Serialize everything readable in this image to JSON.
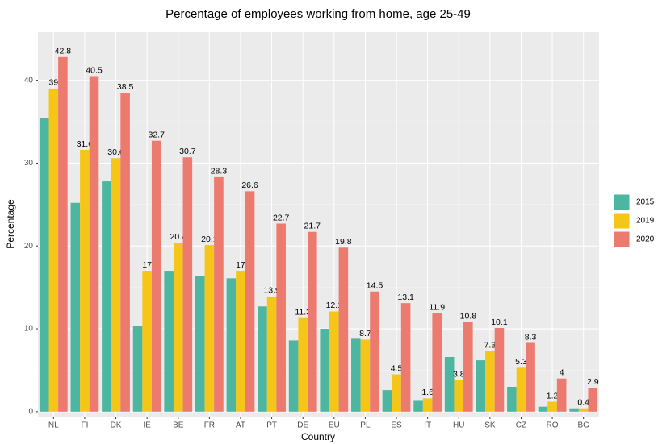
{
  "chart_data": {
    "type": "bar",
    "title": "Percentage of employees working from home, age 25-49",
    "x_label": "Country",
    "y_label": "Percentage",
    "categories": [
      "NL",
      "FI",
      "DK",
      "IE",
      "BE",
      "FR",
      "AT",
      "PT",
      "DE",
      "EU",
      "PL",
      "ES",
      "IT",
      "HU",
      "SK",
      "CZ",
      "RO",
      "BG"
    ],
    "series": [
      {
        "name": "2015",
        "color": "#4DB6A0",
        "show_labels": false,
        "values": [
          35.4,
          25.2,
          27.8,
          10.3,
          17.0,
          16.4,
          16.1,
          12.7,
          8.6,
          10.0,
          8.8,
          2.6,
          1.3,
          6.6,
          6.2,
          3.0,
          0.6,
          0.4
        ]
      },
      {
        "name": "2019",
        "color": "#F5C518",
        "show_labels": true,
        "values": [
          39,
          31.6,
          30.6,
          17,
          20.4,
          20.1,
          17,
          13.9,
          11.3,
          12.1,
          8.7,
          4.5,
          1.6,
          3.8,
          7.3,
          5.3,
          1.2,
          0.4
        ]
      },
      {
        "name": "2020",
        "color": "#EC7A6E",
        "show_labels": true,
        "values": [
          42.8,
          40.5,
          38.5,
          32.7,
          30.7,
          28.3,
          26.6,
          22.7,
          21.7,
          19.8,
          14.5,
          13.1,
          11.9,
          10.8,
          10.1,
          8.3,
          4,
          2.9
        ]
      }
    ],
    "ylim": [
      -0.6,
      45.8
    ],
    "yticks": [
      0,
      10,
      20,
      30,
      40
    ],
    "grid": true,
    "legend": "right"
  }
}
